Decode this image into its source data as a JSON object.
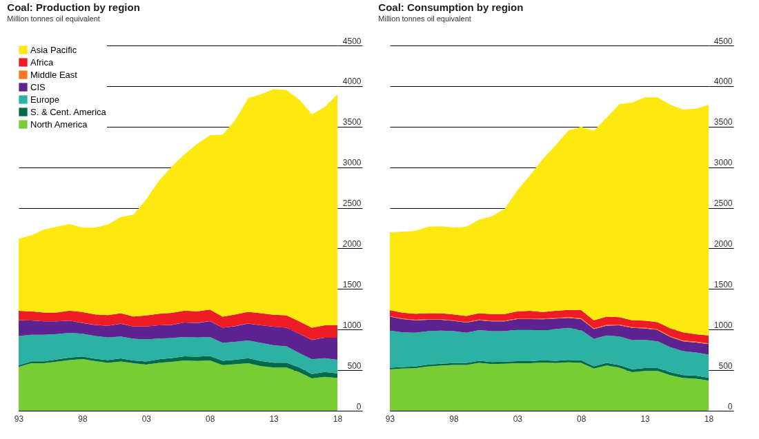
{
  "chart_data": [
    {
      "type": "area",
      "title": "Coal: Production by region",
      "subtitle": "Million tonnes oil equivalent",
      "stacked": true,
      "grid": "y",
      "legend": "top left",
      "x": [
        1993,
        1994,
        1995,
        1996,
        1997,
        1998,
        1999,
        2000,
        2001,
        2002,
        2003,
        2004,
        2005,
        2006,
        2007,
        2008,
        2009,
        2010,
        2011,
        2012,
        2013,
        2014,
        2015,
        2016,
        2017,
        2018
      ],
      "xlim": [
        1993,
        2018
      ],
      "xticks": [
        {
          "value": 1993,
          "label": "93"
        },
        {
          "value": 1998,
          "label": "98"
        },
        {
          "value": 2003,
          "label": "03"
        },
        {
          "value": 2008,
          "label": "08"
        },
        {
          "value": 2013,
          "label": "13"
        },
        {
          "value": 2018,
          "label": "18"
        }
      ],
      "ylim": [
        0,
        4500
      ],
      "yticks": [
        0,
        500,
        1000,
        1500,
        2000,
        2500,
        3000,
        3500,
        4000,
        4500
      ],
      "series": [
        {
          "name": "North America",
          "color": "#78cd34",
          "values": [
            539,
            585,
            585,
            605,
            625,
            637,
            611,
            591,
            608,
            585,
            568,
            591,
            602,
            620,
            614,
            620,
            562,
            573,
            585,
            550,
            533,
            533,
            476,
            398,
            418,
            403
          ]
        },
        {
          "name": "S. & Cent. America",
          "color": "#006b4a",
          "values": [
            22,
            24,
            25,
            28,
            30,
            31,
            30,
            33,
            37,
            35,
            40,
            44,
            48,
            50,
            52,
            55,
            53,
            56,
            62,
            64,
            60,
            60,
            58,
            55,
            60,
            58
          ]
        },
        {
          "name": "Europe",
          "color": "#2cb1a3",
          "values": [
            361,
            328,
            327,
            312,
            305,
            280,
            281,
            278,
            269,
            268,
            271,
            255,
            246,
            238,
            236,
            233,
            221,
            221,
            220,
            222,
            214,
            200,
            178,
            181,
            170,
            167
          ]
        },
        {
          "name": "CIS",
          "color": "#5c2391",
          "values": [
            193,
            175,
            164,
            156,
            150,
            133,
            136,
            144,
            158,
            149,
            158,
            162,
            162,
            178,
            179,
            196,
            187,
            193,
            208,
            216,
            228,
            230,
            239,
            239,
            251,
            271
          ]
        },
        {
          "name": "Middle East",
          "color": "#f7761f",
          "values": [
            1,
            1,
            1,
            1,
            1,
            1,
            1,
            1,
            1,
            1,
            1,
            1,
            1,
            1,
            1,
            1,
            1,
            1,
            1,
            1,
            1,
            1,
            1,
            1,
            1,
            1
          ]
        },
        {
          "name": "Africa",
          "color": "#ee1c25",
          "values": [
            115,
            112,
            108,
            108,
            122,
            134,
            128,
            132,
            129,
            123,
            135,
            143,
            146,
            146,
            143,
            140,
            134,
            143,
            143,
            149,
            146,
            152,
            149,
            149,
            152,
            152
          ]
        },
        {
          "name": "Asia Pacific",
          "color": "#fde910",
          "values": [
            887,
            936,
            1023,
            1058,
            1067,
            1040,
            1069,
            1115,
            1184,
            1254,
            1429,
            1637,
            1801,
            1926,
            2063,
            2150,
            2243,
            2395,
            2631,
            2697,
            2781,
            2775,
            2735,
            2631,
            2689,
            2847
          ]
        }
      ]
    },
    {
      "type": "area",
      "title": "Coal: Consumption by region",
      "subtitle": "Million tonnes oil equivalent",
      "stacked": true,
      "grid": "y",
      "x": [
        1993,
        1994,
        1995,
        1996,
        1997,
        1998,
        1999,
        2000,
        2001,
        2002,
        2003,
        2004,
        2005,
        2006,
        2007,
        2008,
        2009,
        2010,
        2011,
        2012,
        2013,
        2014,
        2015,
        2016,
        2017,
        2018
      ],
      "xlim": [
        1993,
        2018
      ],
      "xticks": [
        {
          "value": 1993,
          "label": "93"
        },
        {
          "value": 1998,
          "label": "98"
        },
        {
          "value": 2003,
          "label": "03"
        },
        {
          "value": 2008,
          "label": "08"
        },
        {
          "value": 2013,
          "label": "13"
        },
        {
          "value": 2018,
          "label": "18"
        }
      ],
      "ylim": [
        0,
        4500
      ],
      "yticks": [
        0,
        500,
        1000,
        1500,
        2000,
        2500,
        3000,
        3500,
        4000,
        4500
      ],
      "series": [
        {
          "color": "#78cd34",
          "values": [
            510,
            519,
            524,
            545,
            556,
            565,
            565,
            591,
            576,
            579,
            585,
            585,
            594,
            588,
            597,
            591,
            519,
            559,
            530,
            476,
            490,
            490,
            438,
            403,
            395,
            372
          ]
        },
        {
          "color": "#006b4a",
          "values": [
            20,
            21,
            22,
            23,
            24,
            24,
            24,
            25,
            25,
            25,
            26,
            27,
            27,
            28,
            29,
            31,
            29,
            31,
            33,
            35,
            36,
            37,
            37,
            37,
            37,
            36
          ]
        },
        {
          "color": "#2cb1a3",
          "values": [
            456,
            425,
            416,
            412,
            406,
            391,
            373,
            378,
            379,
            376,
            389,
            388,
            373,
            390,
            394,
            372,
            337,
            338,
            351,
            359,
            347,
            329,
            309,
            295,
            286,
            284
          ]
        },
        {
          "color": "#5c2391",
          "values": [
            173,
            165,
            153,
            141,
            135,
            127,
            124,
            121,
            121,
            121,
            130,
            130,
            133,
            129,
            124,
            136,
            121,
            121,
            138,
            150,
            141,
            138,
            124,
            121,
            123,
            129
          ]
        },
        {
          "color": "#f7761f",
          "values": [
            5,
            5,
            5,
            6,
            6,
            6,
            6,
            7,
            7,
            7,
            8,
            8,
            8,
            8,
            9,
            9,
            9,
            9,
            10,
            10,
            10,
            10,
            10,
            10,
            10,
            10
          ]
        },
        {
          "color": "#ee1c25",
          "values": [
            75,
            72,
            76,
            75,
            75,
            74,
            75,
            80,
            82,
            82,
            87,
            93,
            81,
            88,
            89,
            100,
            100,
            101,
            91,
            85,
            86,
            88,
            96,
            99,
            91,
            97
          ]
        },
        {
          "color": "#fde910",
          "values": [
            957,
            998,
            1020,
            1066,
            1072,
            1069,
            1101,
            1151,
            1206,
            1298,
            1489,
            1671,
            1888,
            2041,
            2209,
            2261,
            2336,
            2451,
            2624,
            2683,
            2751,
            2769,
            2755,
            2746,
            2778,
            2841
          ]
        }
      ]
    }
  ]
}
